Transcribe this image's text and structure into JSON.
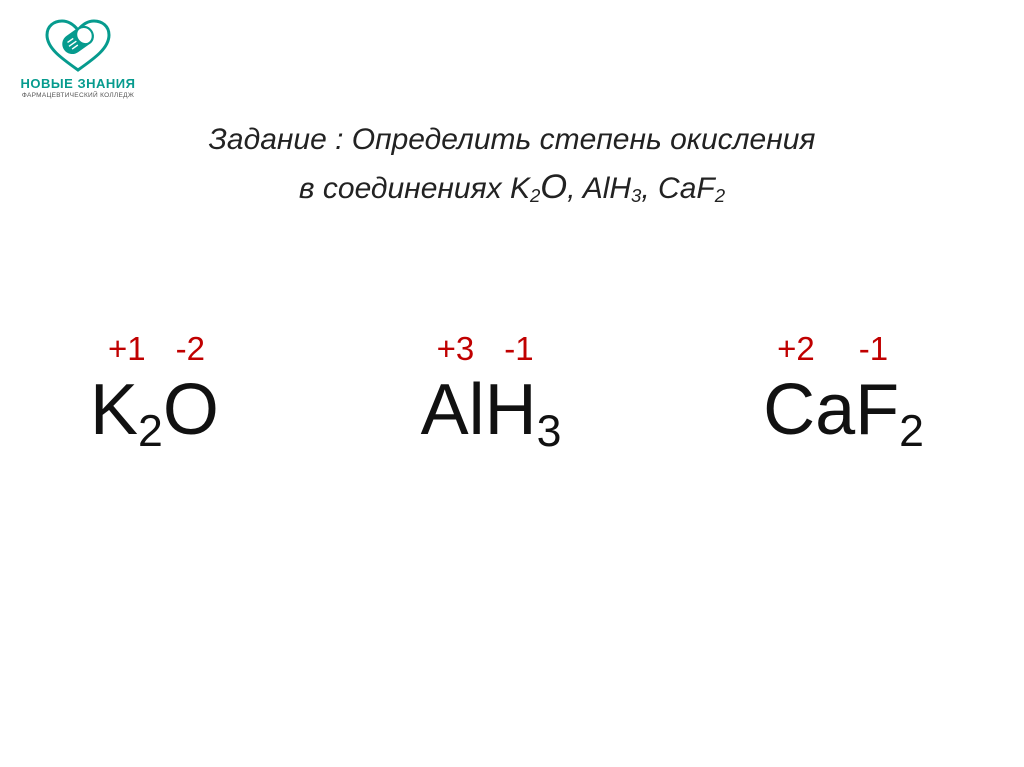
{
  "logo": {
    "main": "НОВЫЕ ЗНАНИЯ",
    "sub": "ФАРМАЦЕВТИЧЕСКИЙ КОЛЛЕДЖ",
    "color": "#069b8e"
  },
  "title": {
    "line1_prefix": "Задание : Определить  степень  окисления",
    "line2_prefix": "в  соединениях ",
    "compounds": [
      {
        "base": "K",
        "sub": "2",
        "tail": "O",
        "bigTail": true
      },
      {
        "base": "AlH",
        "sub": "3",
        "tail": ""
      },
      {
        "base": "CaF",
        "sub": "2",
        "tail": ""
      }
    ],
    "font_size": 30,
    "color": "#222222"
  },
  "formulas": [
    {
      "ox": {
        "a": "+1",
        "b": "-2",
        "gap1": 18,
        "gap2": 30
      },
      "chem_html": "K<sub>2</sub>O"
    },
    {
      "ox": {
        "a": "+3",
        "b": "-1",
        "gap1": 16,
        "gap2": 30
      },
      "chem_html": "AlH<sub>3</sub>"
    },
    {
      "ox": {
        "a": "+2",
        "b": "-1",
        "gap1": 14,
        "gap2": 44
      },
      "chem_html": "CaF<sub>2</sub>"
    }
  ],
  "colors": {
    "oxidation": "#c00000",
    "formula": "#111111",
    "background": "#ffffff"
  },
  "typography": {
    "oxidation_fontsize": 33,
    "formula_fontsize": 72
  }
}
